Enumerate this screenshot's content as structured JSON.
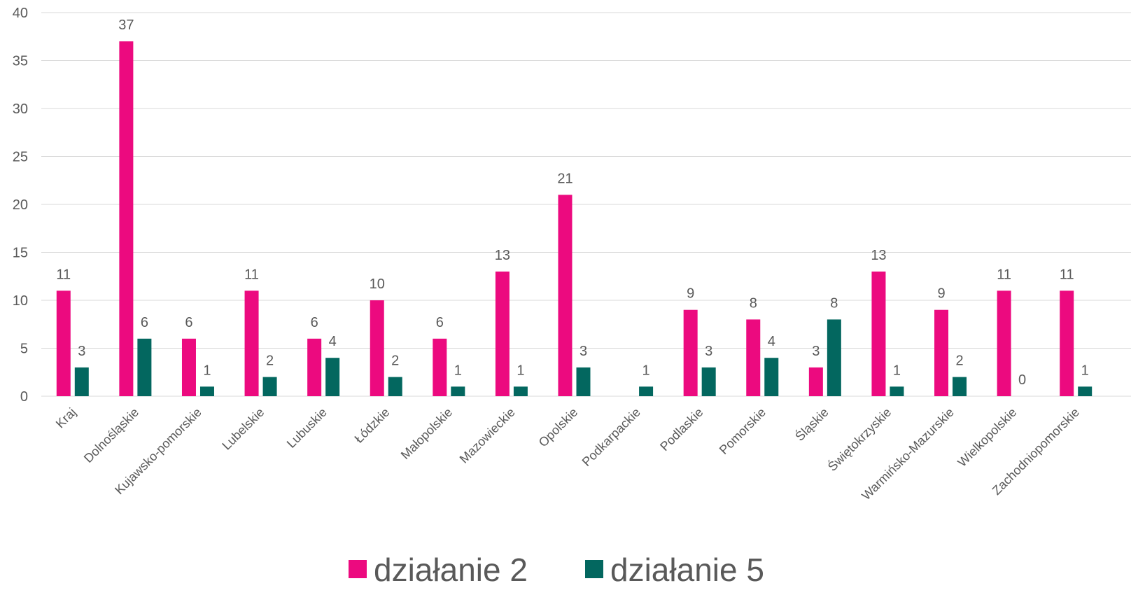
{
  "chart_data": {
    "type": "bar",
    "categories": [
      "Kraj",
      "Dolnośląskie",
      "Kujawsko-pomorskie",
      "Lubelskie",
      "Lubuskie",
      "Łódzkie",
      "Małopolskie",
      "Mazowieckie",
      "Opolskie",
      "Podkarpackie",
      "Podlaskie",
      "Pomorskie",
      "Śląskie",
      "Świętokrzyskie",
      "Warmińsko-Mazurskie",
      "Wielkopolskie",
      "Zachodniopomorskie"
    ],
    "series": [
      {
        "name": "działanie 2",
        "color": "#ec0a7f",
        "values": [
          11,
          37,
          6,
          11,
          6,
          10,
          6,
          13,
          21,
          null,
          9,
          8,
          3,
          13,
          9,
          11,
          11
        ]
      },
      {
        "name": "działanie 5",
        "color": "#03675f",
        "values": [
          3,
          6,
          1,
          2,
          4,
          2,
          1,
          1,
          3,
          1,
          3,
          4,
          8,
          1,
          2,
          0,
          1
        ]
      }
    ],
    "ylim": [
      0,
      40
    ],
    "yticks": [
      0,
      5,
      10,
      15,
      20,
      25,
      30,
      35,
      40
    ],
    "grid": true,
    "legend": "bottom"
  }
}
